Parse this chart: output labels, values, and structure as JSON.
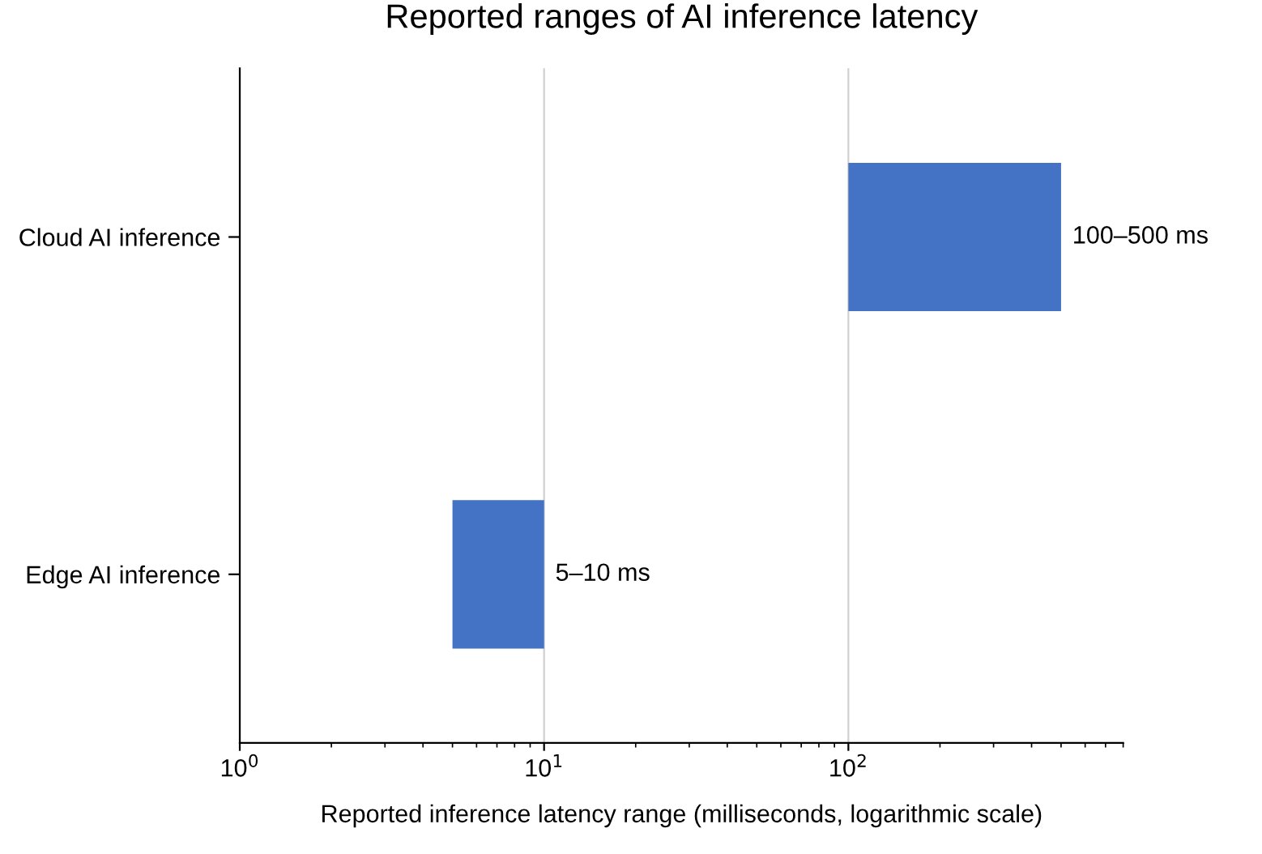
{
  "chart_data": {
    "type": "bar",
    "orientation": "horizontal",
    "title": "Reported ranges of AI inference latency",
    "xlabel": "Reported inference latency range (milliseconds, logarithmic scale)",
    "categories": [
      "Cloud AI inference",
      "Edge AI inference"
    ],
    "base": [
      100,
      5
    ],
    "values": [
      400,
      5
    ],
    "color": "#4472c4",
    "value_labels": [
      "100–500 ms",
      "5–10 ms"
    ],
    "log": "x",
    "xlim": [
      1,
      800
    ],
    "xticks": [
      {
        "value": 1,
        "label": "10$^{0}$"
      },
      {
        "value": 10,
        "label": "10$^{1}$"
      },
      {
        "value": 100,
        "label": "10$^{2}$"
      }
    ],
    "grid": "x"
  }
}
